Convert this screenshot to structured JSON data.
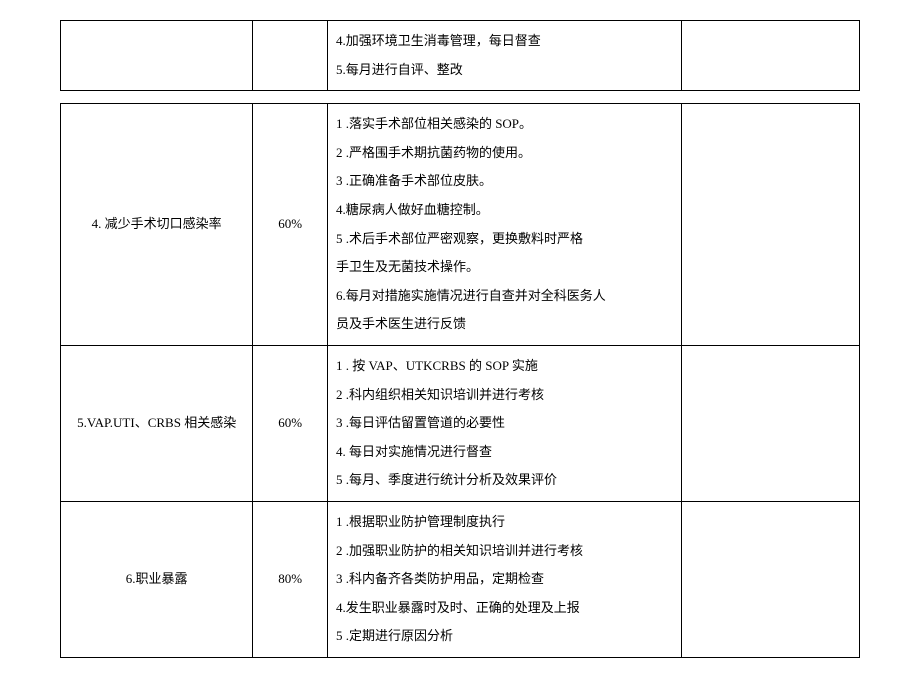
{
  "table1": {
    "rows": [
      {
        "title": "",
        "percent": "",
        "measures": "4.加强环境卫生消毒管理，每日督查\n5.每月进行自评、整改",
        "note": ""
      }
    ]
  },
  "table2": {
    "rows": [
      {
        "title": "4. 减少手术切口感染率",
        "percent": "60%",
        "measures": "1    .落实手术部位相关感染的 SOP。\n2    .严格围手术期抗菌药物的使用。\n3    .正确准备手术部位皮肤。\n4.糖尿病人做好血糖控制。\n5    .术后手术部位严密观察，更换敷料时严格\n手卫生及无菌技术操作。\n6.每月对措施实施情况进行自查并对全科医务人\n员及手术医生进行反馈",
        "note": ""
      },
      {
        "title": "5.VAP.UTI、CRBS 相关感染",
        "percent": "60%",
        "measures": "1    . 按 VAP、UTKCRBS 的 SOP 实施\n2    .科内组织相关知识培训并进行考核\n3    .每日评估留置管道的必要性\n4. 每日对实施情况进行督查\n5    .每月、季度进行统计分析及效果评价",
        "note": ""
      },
      {
        "title": "6.职业暴露",
        "percent": "80%",
        "measures": "1    .根据职业防护管理制度执行\n2    .加强职业防护的相关知识培训并进行考核\n3    .科内备齐各类防护用品，定期检查\n4.发生职业暴露时及时、正确的处理及上报\n5    .定期进行原因分析",
        "note": ""
      }
    ]
  }
}
